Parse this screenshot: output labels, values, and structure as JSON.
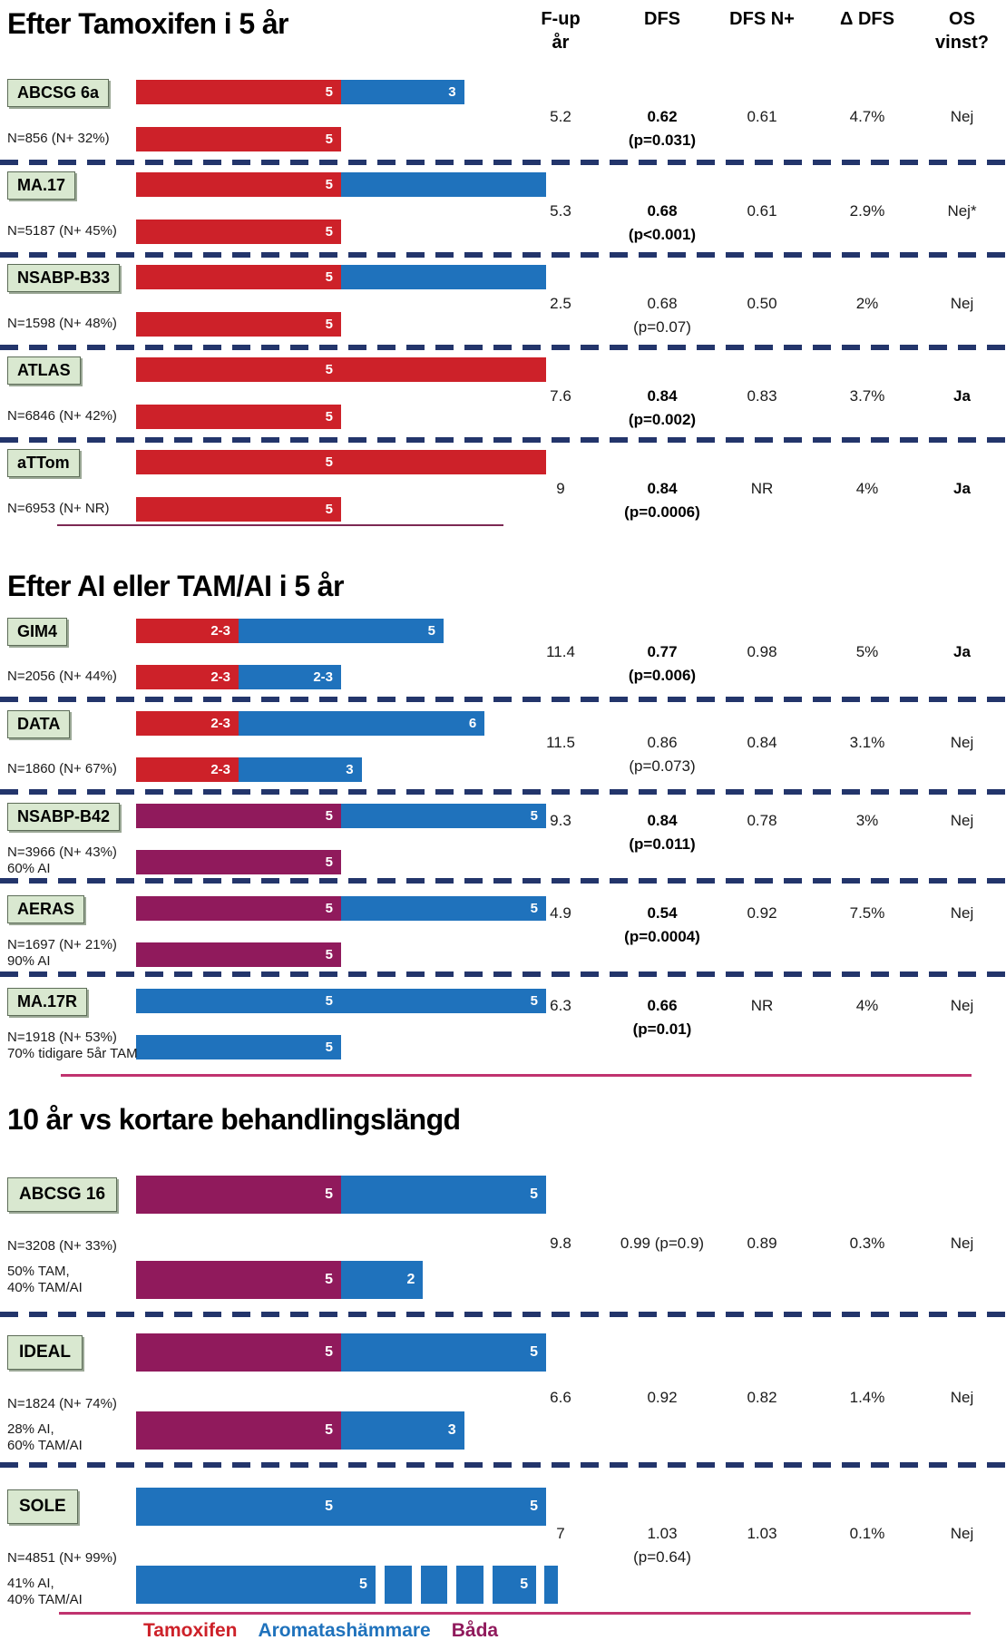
{
  "figure": {
    "columns_display": {
      "fup": "F-up\når",
      "dfs": "DFS",
      "dfsn": "DFS N+",
      "delta": "Δ DFS",
      "os": "OS\nvinst?"
    },
    "legend": [
      {
        "key": "tam",
        "label": "Tamoxifen"
      },
      {
        "key": "ai",
        "label": "Aromatashämmare"
      },
      {
        "key": "both",
        "label": "Båda"
      }
    ],
    "colors": {
      "tam": "#CD2129",
      "ai": "#1F72BC",
      "both": "#901A5C",
      "dash": "#23356B",
      "rule1": "#7C2853",
      "rule2": "#C0336F",
      "label_bg": "#D9E8D0"
    }
  },
  "chart_data": {
    "type": "bar",
    "orientation": "horizontal",
    "x_unit": "years of endocrine treatment (bar segment length = duration in years)",
    "legend": [
      "Tamoxifen",
      "Aromatashämmare",
      "Båda"
    ],
    "columns": [
      "F-up år",
      "DFS",
      "DFS N+",
      "Δ DFS",
      "OS vinst?"
    ],
    "sections": [
      {
        "title": "Efter Tamoxifen i 5 år",
        "trials": [
          {
            "name": "ABCSG 6a",
            "sub": [
              "N=856 (N+ 32%)"
            ],
            "arm1": [
              {
                "drug": "tam",
                "years": 5,
                "label": "5"
              },
              {
                "drug": "ai",
                "years": 3,
                "label": "3"
              }
            ],
            "arm2": [
              {
                "drug": "tam",
                "years": 5,
                "label": "5"
              }
            ],
            "fup": "5.2",
            "dfs": "0.62",
            "p": "(p=0.031)",
            "dfs_bold": true,
            "dfsn": "0.61",
            "delta": "4.7%",
            "os": "Nej",
            "os_bold": false
          },
          {
            "name": "MA.17",
            "sub": [
              "N=5187 (N+ 45%)"
            ],
            "arm1": [
              {
                "drug": "tam",
                "years": 5,
                "label": "5"
              },
              {
                "drug": "ai",
                "years": 5,
                "label": ""
              }
            ],
            "arm2": [
              {
                "drug": "tam",
                "years": 5,
                "label": "5"
              }
            ],
            "fup": "5.3",
            "dfs": "0.68",
            "p": "(p<0.001)",
            "dfs_bold": true,
            "dfsn": "0.61",
            "delta": "2.9%",
            "os": "Nej*",
            "os_bold": false
          },
          {
            "name": "NSABP-B33",
            "sub": [
              "N=1598 (N+ 48%)"
            ],
            "arm1": [
              {
                "drug": "tam",
                "years": 5,
                "label": "5"
              },
              {
                "drug": "ai",
                "years": 5,
                "label": ""
              }
            ],
            "arm2": [
              {
                "drug": "tam",
                "years": 5,
                "label": "5"
              }
            ],
            "fup": "2.5",
            "dfs": "0.68",
            "p": "(p=0.07)",
            "dfs_bold": false,
            "dfsn": "0.50",
            "delta": "2%",
            "os": "Nej",
            "os_bold": false
          },
          {
            "name": "ATLAS",
            "sub": [
              "N=6846 (N+ 42%)"
            ],
            "arm1": [
              {
                "drug": "tam",
                "years": 5,
                "label": "5"
              },
              {
                "drug": "tam",
                "years": 5,
                "label": ""
              }
            ],
            "arm2": [
              {
                "drug": "tam",
                "years": 5,
                "label": "5"
              }
            ],
            "fup": "7.6",
            "dfs": "0.84",
            "p": "(p=0.002)",
            "dfs_bold": true,
            "dfsn": "0.83",
            "delta": "3.7%",
            "os": "Ja",
            "os_bold": true
          },
          {
            "name": "aTTom",
            "sub": [
              "N=6953 (N+ NR)"
            ],
            "arm1": [
              {
                "drug": "tam",
                "years": 5,
                "label": "5"
              },
              {
                "drug": "tam",
                "years": 5,
                "label": ""
              }
            ],
            "arm2": [
              {
                "drug": "tam",
                "years": 5,
                "label": "5"
              }
            ],
            "fup": "9",
            "dfs": "0.84",
            "p": "(p=0.0006)",
            "dfs_bold": true,
            "dfsn": "NR",
            "delta": "4%",
            "os": "Ja",
            "os_bold": true
          }
        ]
      },
      {
        "title": "Efter AI eller TAM/AI i 5 år",
        "trials": [
          {
            "name": "GIM4",
            "sub": [
              "N=2056 (N+ 44%)"
            ],
            "arm1": [
              {
                "drug": "tam",
                "years": 2.5,
                "label": "2-3"
              },
              {
                "drug": "ai",
                "years": 5,
                "label": "5"
              }
            ],
            "arm2": [
              {
                "drug": "tam",
                "years": 2.5,
                "label": "2-3"
              },
              {
                "drug": "ai",
                "years": 2.5,
                "label": "2-3"
              }
            ],
            "fup": "11.4",
            "dfs": "0.77",
            "p": "(p=0.006)",
            "dfs_bold": true,
            "dfsn": "0.98",
            "delta": "5%",
            "os": "Ja",
            "os_bold": true
          },
          {
            "name": "DATA",
            "sub": [
              "N=1860 (N+ 67%)"
            ],
            "arm1": [
              {
                "drug": "tam",
                "years": 2.5,
                "label": "2-3"
              },
              {
                "drug": "ai",
                "years": 6,
                "label": "6"
              }
            ],
            "arm2": [
              {
                "drug": "tam",
                "years": 2.5,
                "label": "2-3"
              },
              {
                "drug": "ai",
                "years": 3,
                "label": "3"
              }
            ],
            "fup": "11.5",
            "dfs": "0.86",
            "p": "(p=0.073)",
            "dfs_bold": false,
            "dfsn": "0.84",
            "delta": "3.1%",
            "os": "Nej",
            "os_bold": false
          },
          {
            "name": "NSABP-B42",
            "sub": [
              "N=3966 (N+ 43%)",
              "60% AI"
            ],
            "arm1": [
              {
                "drug": "both",
                "years": 5,
                "label": "5"
              },
              {
                "drug": "ai",
                "years": 5,
                "label": "5"
              }
            ],
            "arm2": [
              {
                "drug": "both",
                "years": 5,
                "label": "5"
              }
            ],
            "fup": "9.3",
            "dfs": "0.84",
            "p": "(p=0.011)",
            "dfs_bold": true,
            "dfsn": "0.78",
            "delta": "3%",
            "os": "Nej",
            "os_bold": false
          },
          {
            "name": "AERAS",
            "sub": [
              "N=1697 (N+ 21%)",
              "90% AI"
            ],
            "arm1": [
              {
                "drug": "both",
                "years": 5,
                "label": "5"
              },
              {
                "drug": "ai",
                "years": 5,
                "label": "5"
              }
            ],
            "arm2": [
              {
                "drug": "both",
                "years": 5,
                "label": "5"
              }
            ],
            "fup": "4.9",
            "dfs": "0.54",
            "p": "(p=0.0004)",
            "dfs_bold": true,
            "dfsn": "0.92",
            "delta": "7.5%",
            "os": "Nej",
            "os_bold": false
          },
          {
            "name": "MA.17R",
            "sub": [
              "N=1918 (N+ 53%)",
              "70% tidigare 5år TAM"
            ],
            "arm1": [
              {
                "drug": "ai",
                "years": 5,
                "label": "5"
              },
              {
                "drug": "ai",
                "years": 5,
                "label": "5"
              }
            ],
            "arm2": [
              {
                "drug": "ai",
                "years": 5,
                "label": "5"
              }
            ],
            "fup": "6.3",
            "dfs": "0.66",
            "p": "(p=0.01)",
            "dfs_bold": true,
            "dfsn": "NR",
            "delta": "4%",
            "os": "Nej",
            "os_bold": false
          }
        ]
      },
      {
        "title": "10 år vs kortare behandlingslängd",
        "trials": [
          {
            "name": "ABCSG 16",
            "sub": [
              "N=3208 (N+ 33%)",
              "50% TAM,",
              "40% TAM/AI"
            ],
            "arm1": [
              {
                "drug": "both",
                "years": 5,
                "label": "5"
              },
              {
                "drug": "ai",
                "years": 5,
                "label": "5"
              }
            ],
            "arm2": [
              {
                "drug": "both",
                "years": 5,
                "label": "5"
              },
              {
                "drug": "ai",
                "years": 2,
                "label": "2"
              }
            ],
            "fup": "9.8",
            "dfs": "0.99 (p=0.9)",
            "p": "",
            "dfs_bold": false,
            "dfsn": "0.89",
            "delta": "0.3%",
            "os": "Nej",
            "os_bold": false
          },
          {
            "name": "IDEAL",
            "sub": [
              "N=1824 (N+ 74%)",
              "28% AI,",
              "60% TAM/AI"
            ],
            "arm1": [
              {
                "drug": "both",
                "years": 5,
                "label": "5"
              },
              {
                "drug": "ai",
                "years": 5,
                "label": "5"
              }
            ],
            "arm2": [
              {
                "drug": "both",
                "years": 5,
                "label": "5"
              },
              {
                "drug": "ai",
                "years": 3,
                "label": "3"
              }
            ],
            "fup": "6.6",
            "dfs": "0.92",
            "p": "",
            "dfs_bold": false,
            "dfsn": "0.82",
            "delta": "1.4%",
            "os": "Nej",
            "os_bold": false
          },
          {
            "name": "SOLE",
            "sub": [
              "N=4851 (N+ 99%)",
              "41% AI,",
              "40% TAM/AI"
            ],
            "arm1": [
              {
                "drug": "ai",
                "years": 5,
                "label": "5"
              },
              {
                "drug": "ai",
                "years": 5,
                "label": "5"
              }
            ],
            "arm2": [
              {
                "drug": "ai",
                "years": 5.84,
                "label": "5"
              },
              {
                "drug": "gap",
                "years": 0.22,
                "label": ""
              },
              {
                "drug": "ai",
                "years": 0.66,
                "label": ""
              },
              {
                "drug": "gap",
                "years": 0.22,
                "label": ""
              },
              {
                "drug": "ai",
                "years": 0.66,
                "label": ""
              },
              {
                "drug": "gap",
                "years": 0.22,
                "label": ""
              },
              {
                "drug": "ai",
                "years": 0.66,
                "label": ""
              },
              {
                "drug": "gap",
                "years": 0.22,
                "label": ""
              },
              {
                "drug": "ai",
                "years": 1.06,
                "label": "5"
              },
              {
                "drug": "gap",
                "years": 0.15,
                "label": ""
              },
              {
                "drug": "ai",
                "years": 0.33,
                "label": ""
              }
            ],
            "fup": "7",
            "dfs": "1.03",
            "p": "(p=0.64)",
            "dfs_bold": false,
            "dfsn": "1.03",
            "delta": "0.1%",
            "os": "Nej",
            "os_bold": false
          }
        ]
      }
    ]
  }
}
